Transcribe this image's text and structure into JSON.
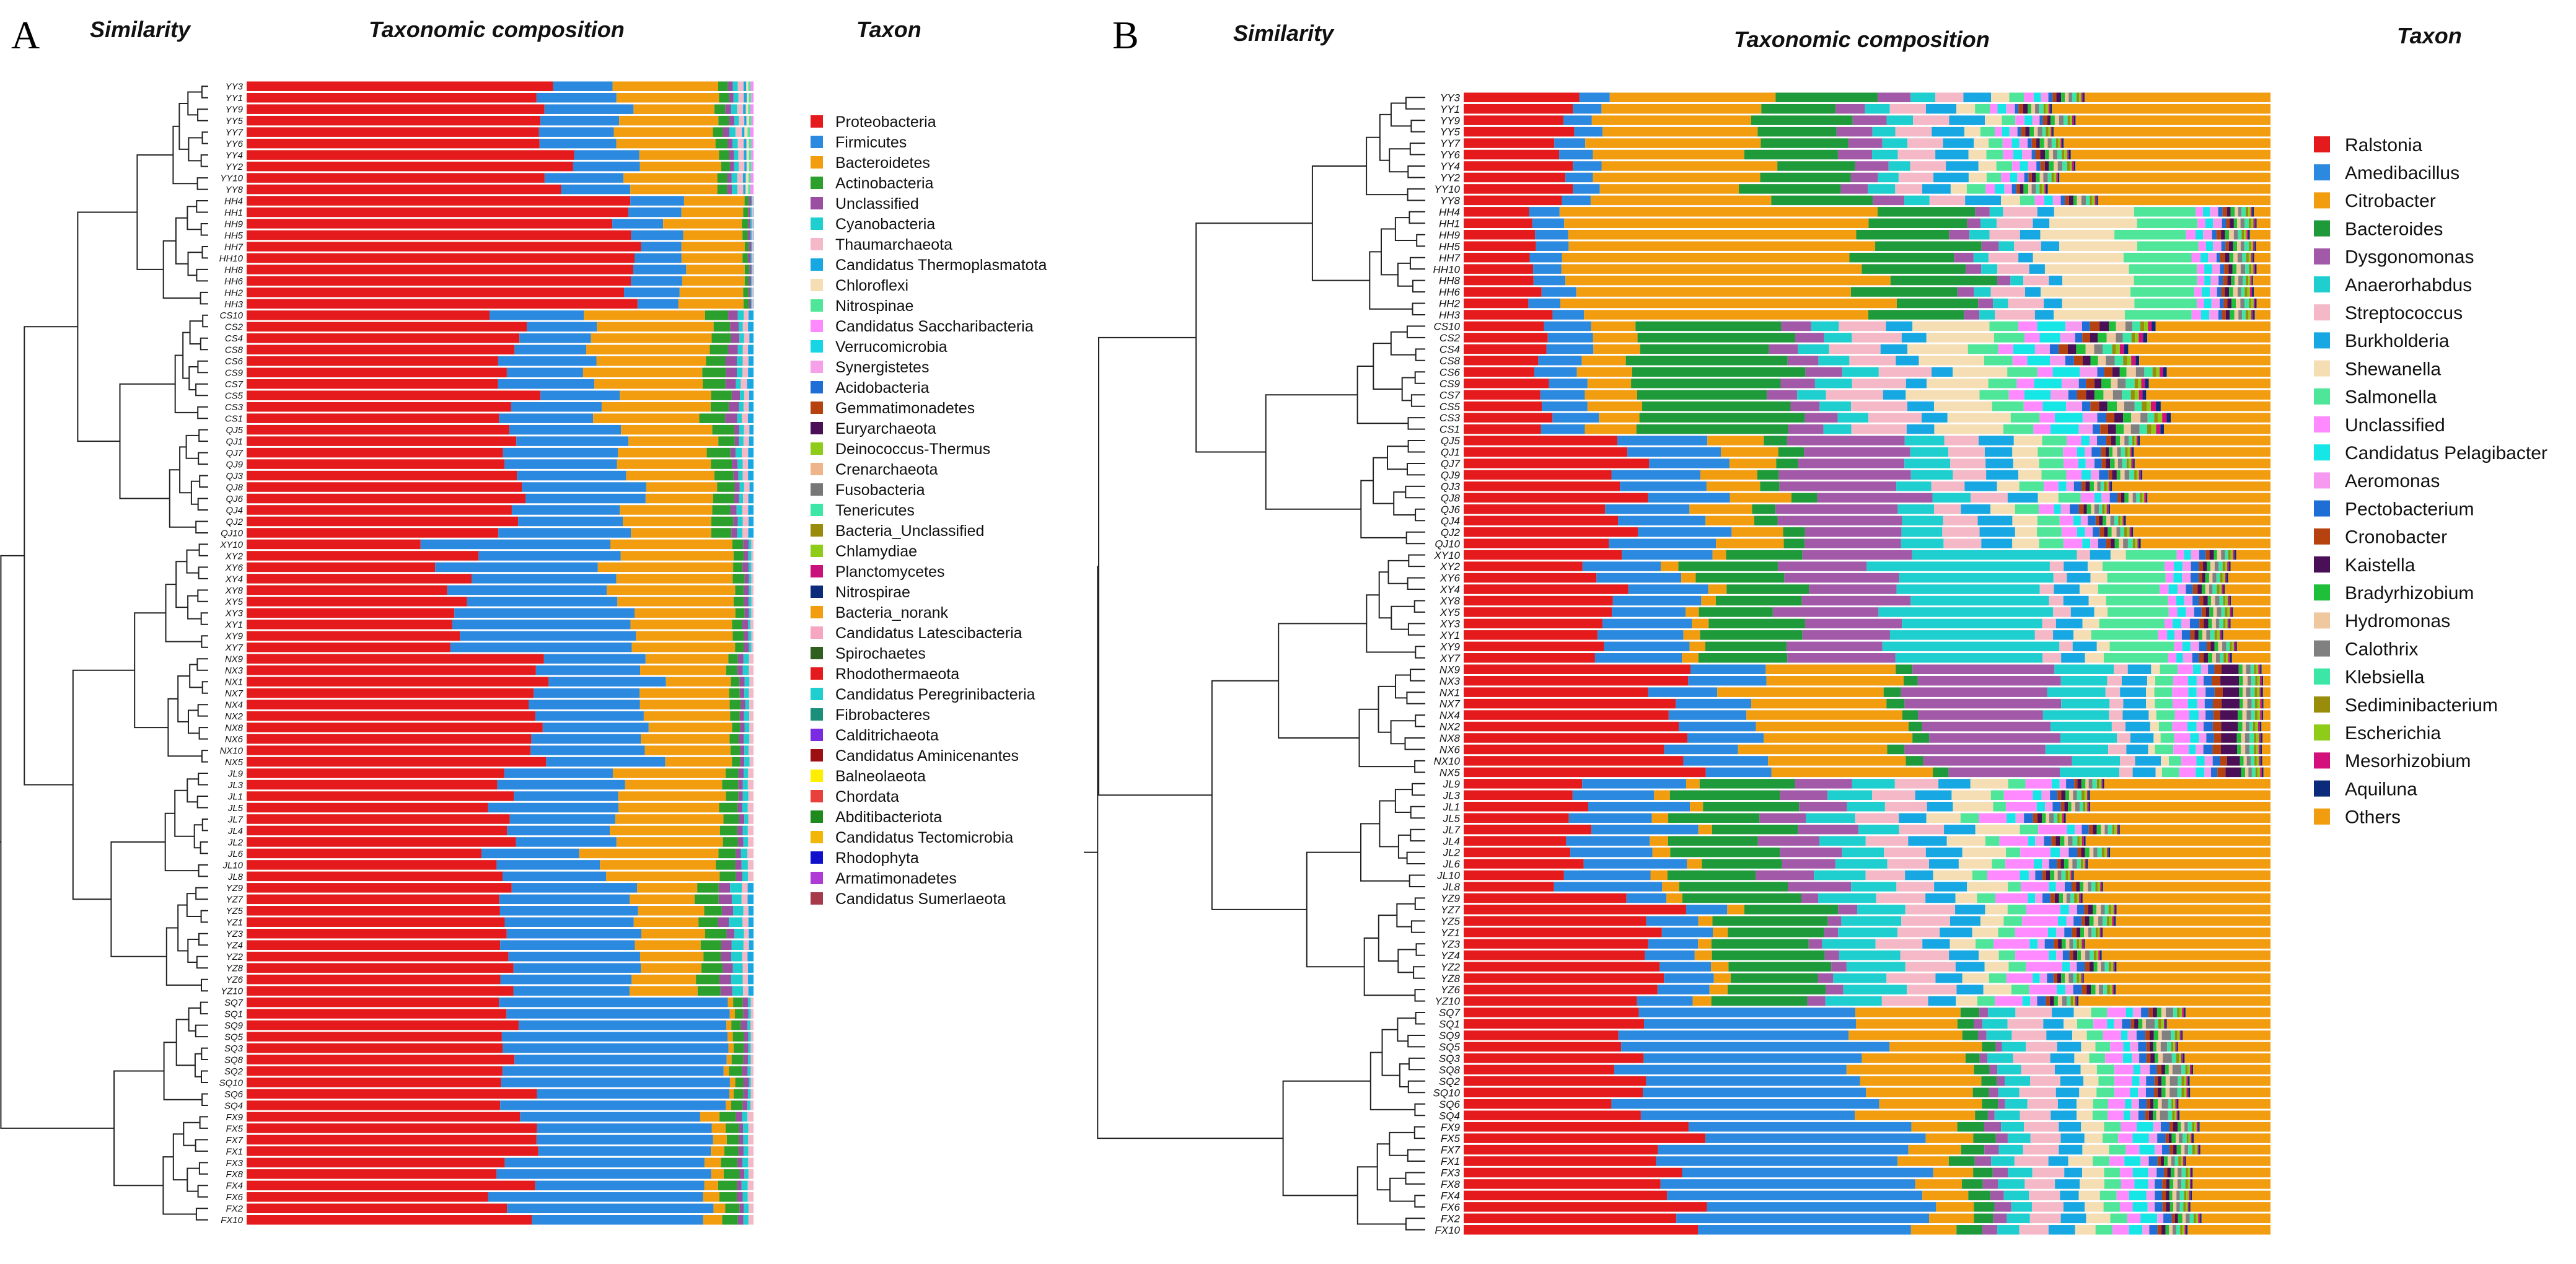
{
  "figure": {
    "panels": [
      {
        "letter": "A",
        "headers": {
          "similarity": "Similarity",
          "composition": "Taxonomic composition",
          "taxon": "Taxon"
        }
      },
      {
        "letter": "B",
        "headers": {
          "similarity": "Similarity",
          "composition": "Taxonomic composition",
          "taxon": "Taxon"
        }
      }
    ]
  },
  "chart_data": [
    {
      "type": "bar",
      "orientation": "horizontal-stacked-100",
      "panel": "A",
      "level": "phylum",
      "samples": [
        "YY3",
        "YY1",
        "YY9",
        "YY5",
        "YY7",
        "YY6",
        "YY4",
        "YY2",
        "YY10",
        "YY8",
        "HH4",
        "HH1",
        "HH9",
        "HH5",
        "HH7",
        "HH10",
        "HH8",
        "HH6",
        "HH2",
        "HH3",
        "CS10",
        "CS2",
        "CS4",
        "CS8",
        "CS6",
        "CS9",
        "CS7",
        "CS5",
        "CS3",
        "CS1",
        "QJ5",
        "QJ1",
        "QJ7",
        "QJ9",
        "QJ3",
        "QJ8",
        "QJ6",
        "QJ4",
        "QJ2",
        "QJ10",
        "XY10",
        "XY2",
        "XY6",
        "XY4",
        "XY8",
        "XY5",
        "XY3",
        "XY1",
        "XY9",
        "XY7",
        "NX9",
        "NX3",
        "NX1",
        "NX7",
        "NX4",
        "NX2",
        "NX8",
        "NX6",
        "NX10",
        "NX5",
        "JL9",
        "JL3",
        "JL1",
        "JL5",
        "JL7",
        "JL4",
        "JL2",
        "JL6",
        "JL10",
        "JL8",
        "YZ9",
        "YZ7",
        "YZ5",
        "YZ1",
        "YZ3",
        "YZ4",
        "YZ2",
        "YZ8",
        "YZ6",
        "YZ10",
        "SQ7",
        "SQ1",
        "SQ9",
        "SQ5",
        "SQ3",
        "SQ8",
        "SQ2",
        "SQ10",
        "SQ6",
        "SQ4",
        "FX9",
        "FX5",
        "FX7",
        "FX1",
        "FX3",
        "FX8",
        "FX4",
        "FX6",
        "FX2",
        "FX10"
      ],
      "legend": [
        "Proteobacteria",
        "Firmicutes",
        "Bacteroidetes",
        "Actinobacteria",
        "Unclassified",
        "Cyanobacteria",
        "Thaumarchaeota",
        "Candidatus Thermoplasmatota",
        "Chloroflexi",
        "Nitrospinae",
        "Candidatus Saccharibacteria",
        "Verrucomicrobia",
        "Synergistetes",
        "Acidobacteria",
        "Gemmatimonadetes",
        "Euryarchaeota",
        "Deinococcus-Thermus",
        "Crenarchaeota",
        "Fusobacteria",
        "Tenericutes",
        "Bacteria_Unclassified",
        "Chlamydiae",
        "Planctomycetes",
        "Nitrospirae",
        "Bacteria_norank",
        "Candidatus Latescibacteria",
        "Spirochaetes",
        "Rhodothermaeota",
        "Candidatus Peregrinibacteria",
        "Fibrobacteres",
        "Calditrichaeota",
        "Candidatus Aminicenantes",
        "Balneolaeota",
        "Chordata",
        "Abditibacteriota",
        "Candidatus Tectomicrobia",
        "Rhodophyta",
        "Armatimonadetes",
        "Candidatus Sumerlaeota"
      ],
      "colors": [
        "#e41a1c",
        "#2c89e0",
        "#f29d0f",
        "#2ca02c",
        "#9a4fa0",
        "#1fcfcf",
        "#f5b8c6",
        "#17a8e3",
        "#f5deb3",
        "#4fe69a",
        "#ff8aff",
        "#16d6e6",
        "#f5a0e8",
        "#1e6ed6",
        "#b5420f",
        "#4a0f57",
        "#8fcc1a",
        "#f0b48a",
        "#777777",
        "#3ce6a6",
        "#998c0a",
        "#8fcc1a",
        "#c8117b",
        "#0b2a7a",
        "#f29d0f",
        "#f7a6c2",
        "#2f5f1f",
        "#e41a1c",
        "#1fcfcf",
        "#1a8f7a",
        "#7a2be2",
        "#9c0f12",
        "#ffee00",
        "#e8403a",
        "#1e8a1e",
        "#f2b705",
        "#1010cc",
        "#b03ad6",
        "#a63a4a"
      ],
      "group_composition_percent": {
        "YY": [
          61,
          14,
          18,
          2,
          1,
          1,
          1,
          0.5,
          0.5,
          0.5,
          0.5
        ],
        "HH": [
          75,
          10,
          13,
          1,
          0.5,
          0.2,
          0.2,
          0.1
        ],
        "CS": [
          52,
          17,
          22,
          4,
          2,
          1,
          1,
          1
        ],
        "QJ": [
          53,
          23,
          16,
          4,
          1,
          1,
          1,
          1
        ],
        "XY": [
          40,
          33,
          23,
          2,
          1,
          0.5,
          0.5
        ],
        "NX": [
          57,
          22,
          16,
          2,
          1,
          1,
          1
        ],
        "JL": [
          51,
          21,
          22,
          3,
          1,
          1,
          1
        ],
        "YZ": [
          52,
          25,
          13,
          4,
          2,
          2,
          1,
          1
        ],
        "SQ": [
          54,
          41,
          1,
          2,
          1,
          0.5,
          0.5
        ],
        "FX": [
          53,
          38,
          3,
          3,
          1,
          1,
          1
        ]
      },
      "title": "",
      "xlabel": "",
      "ylabel": ""
    },
    {
      "type": "bar",
      "orientation": "horizontal-stacked-100",
      "panel": "B",
      "level": "genus",
      "samples": [
        "YY3",
        "YY1",
        "YY9",
        "YY5",
        "YY7",
        "YY6",
        "YY4",
        "YY2",
        "YY10",
        "YY8",
        "HH4",
        "HH1",
        "HH9",
        "HH5",
        "HH7",
        "HH10",
        "HH8",
        "HH6",
        "HH2",
        "HH3",
        "CS10",
        "CS2",
        "CS4",
        "CS8",
        "CS6",
        "CS9",
        "CS7",
        "CS5",
        "CS3",
        "CS1",
        "QJ5",
        "QJ1",
        "QJ7",
        "QJ9",
        "QJ3",
        "QJ8",
        "QJ6",
        "QJ4",
        "QJ2",
        "QJ10",
        "XY10",
        "XY2",
        "XY6",
        "XY4",
        "XY8",
        "XY5",
        "XY3",
        "XY1",
        "XY9",
        "XY7",
        "NX9",
        "NX3",
        "NX1",
        "NX7",
        "NX4",
        "NX2",
        "NX8",
        "NX6",
        "NX10",
        "NX5",
        "JL9",
        "JL3",
        "JL1",
        "JL5",
        "JL7",
        "JL4",
        "JL2",
        "JL6",
        "JL10",
        "JL8",
        "YZ9",
        "YZ7",
        "YZ5",
        "YZ1",
        "YZ3",
        "YZ4",
        "YZ2",
        "YZ8",
        "YZ6",
        "YZ10",
        "SQ7",
        "SQ1",
        "SQ9",
        "SQ5",
        "SQ3",
        "SQ8",
        "SQ2",
        "SQ10",
        "SQ6",
        "SQ4",
        "FX9",
        "FX5",
        "FX7",
        "FX1",
        "FX3",
        "FX8",
        "FX4",
        "FX6",
        "FX2",
        "FX10"
      ],
      "legend": [
        "Ralstonia",
        "Amedibacillus",
        "Citrobacter",
        "Bacteroides",
        "Dysgonomonas",
        "Anaerorhabdus",
        "Streptococcus",
        "Burkholderia",
        "Shewanella",
        "Salmonella",
        "Unclassified",
        "Candidatus Pelagibacter",
        "Aeromonas",
        "Pectobacterium",
        "Cronobacter",
        "Kaistella",
        "Bradyrhizobium",
        "Hydromonas",
        "Calothrix",
        "Klebsiella",
        "Sediminibacterium",
        "Escherichia",
        "Mesorhizobium",
        "Aquiluna",
        "Others"
      ],
      "colors": [
        "#e41a1c",
        "#2c89e0",
        "#f29d0f",
        "#1e9a3a",
        "#a25aa8",
        "#1fcfcf",
        "#f5b8c6",
        "#17a8e3",
        "#f5deb3",
        "#4fe69a",
        "#ff8aff",
        "#16e6e6",
        "#f59af0",
        "#1e6ed6",
        "#b5420f",
        "#4a0f57",
        "#1fbf3a",
        "#f0c8a0",
        "#808080",
        "#3ce6a6",
        "#998c0a",
        "#8fcc1a",
        "#d4117b",
        "#0b2a7a",
        "#f29d0f"
      ],
      "group_composition_percent": {
        "YY": [
          13,
          4,
          20,
          11,
          4,
          3,
          4,
          4,
          2,
          2,
          1,
          1,
          1,
          0.5,
          0.5,
          0.5,
          0.5,
          0.5,
          0.5,
          0.5,
          0.3,
          0.3,
          0.2,
          0.2,
          25
        ],
        "HH": [
          9,
          4,
          38,
          12,
          2,
          2,
          4,
          2,
          10,
          8,
          1,
          1,
          1,
          0.5,
          0.5,
          0.5,
          0.5,
          0.5,
          0.5,
          0.5,
          0.3,
          0.3,
          0.2,
          0.2,
          2
        ],
        "CS": [
          10,
          5,
          6,
          19,
          4,
          4,
          6,
          3,
          8,
          4,
          2,
          3,
          2,
          1,
          1,
          1,
          1,
          1,
          1,
          1,
          0.5,
          0.5,
          0.5,
          0.5,
          15
        ],
        "QJ": [
          20,
          12,
          7,
          3,
          14,
          5,
          4,
          4,
          3,
          3,
          2,
          1,
          1,
          1,
          0.5,
          0.5,
          0.5,
          0.5,
          0.5,
          0.5,
          0.3,
          0.3,
          0.2,
          0.2,
          18
        ],
        "XY": [
          18,
          11,
          2,
          11,
          13,
          20,
          2,
          3,
          2,
          8,
          1,
          1,
          1,
          1,
          0.5,
          0.5,
          0.5,
          0.5,
          0.5,
          0.5,
          0.3,
          0.3,
          0.2,
          0.2,
          5
        ],
        "NX": [
          27,
          10,
          20,
          2,
          17,
          7,
          2,
          3,
          1,
          2,
          2,
          1,
          1,
          1,
          1,
          2,
          0.5,
          0.5,
          0.5,
          0.5,
          0.3,
          0.3,
          0.2,
          0.2,
          1
        ],
        "JL": [
          14,
          12,
          2,
          12,
          7,
          6,
          5,
          4,
          5,
          2,
          4,
          1,
          1,
          1,
          0.5,
          0.5,
          0.5,
          0.5,
          0.5,
          0.5,
          0.3,
          0.3,
          0.2,
          0.2,
          22
        ],
        "YZ": [
          24,
          6,
          2,
          13,
          2,
          7,
          6,
          4,
          3,
          2,
          4,
          1,
          1,
          1,
          0.5,
          0.5,
          0.5,
          0.5,
          0.5,
          0.5,
          0.3,
          0.3,
          0.2,
          0.2,
          21
        ],
        "SQ": [
          21,
          31,
          14,
          2,
          1,
          3,
          4,
          3,
          2,
          2,
          2,
          1,
          1,
          1,
          0.5,
          0.5,
          0.5,
          0.5,
          1,
          0.5,
          0.3,
          0.3,
          0.2,
          0.2,
          11
        ],
        "FX": [
          29,
          31,
          6,
          3,
          2,
          3,
          4,
          3,
          3,
          2,
          2,
          2,
          1,
          1,
          0.5,
          0.5,
          0.5,
          0.5,
          0.5,
          0.5,
          0.3,
          0.3,
          0.2,
          0.2,
          10
        ]
      },
      "title": "",
      "xlabel": "",
      "ylabel": ""
    }
  ]
}
